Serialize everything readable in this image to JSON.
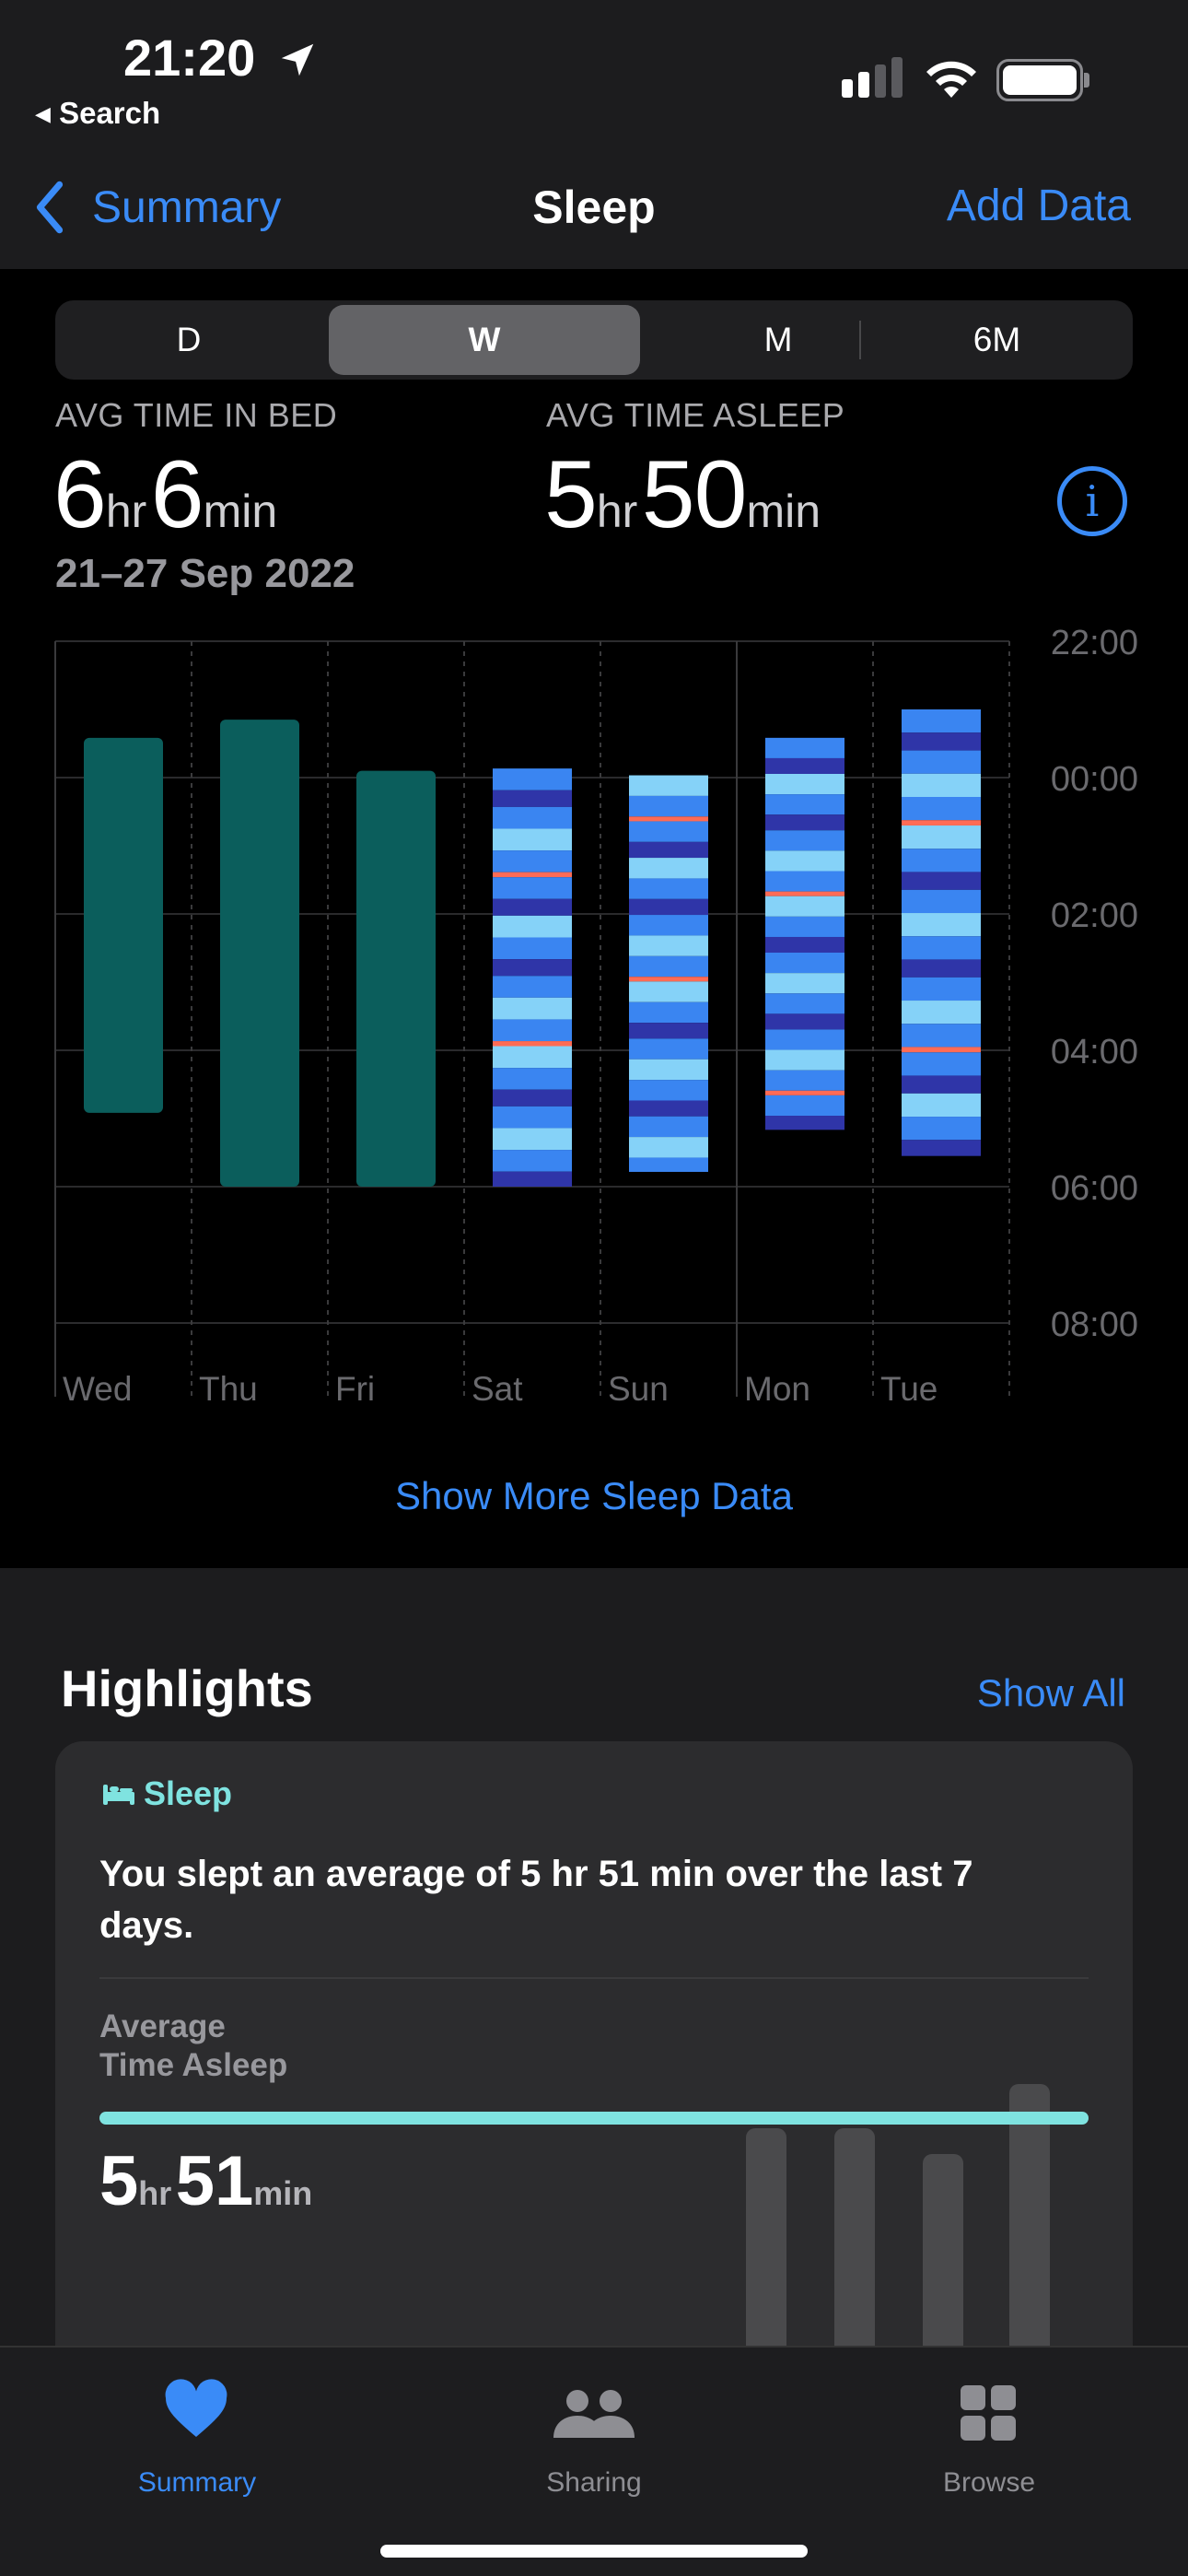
{
  "status_bar": {
    "time": "21:20",
    "back_app": "Search"
  },
  "nav": {
    "back_label": "Summary",
    "title": "Sleep",
    "action_label": "Add Data"
  },
  "segments": [
    "D",
    "W",
    "M",
    "6M"
  ],
  "selected_segment": "W",
  "stats": {
    "in_bed_label": "AVG TIME IN BED",
    "in_bed_hr": "6",
    "in_bed_min": "6",
    "asleep_label": "AVG TIME ASLEEP",
    "asleep_hr": "5",
    "asleep_min": "50",
    "hr_unit": "hr",
    "min_unit": "min",
    "date_range": "21–27 Sep 2022"
  },
  "chart_data": {
    "type": "bar",
    "y_ticks": [
      "22:00",
      "00:00",
      "02:00",
      "04:00",
      "06:00",
      "08:00"
    ],
    "ylim": [
      "22:00",
      "08:00"
    ],
    "categories": [
      "Wed",
      "Thu",
      "Fri",
      "Sat",
      "Sun",
      "Mon",
      "Tue"
    ],
    "series": [
      {
        "kind": "in_bed",
        "bars": [
          {
            "day": "Wed",
            "start": "23:25",
            "end": "04:55"
          },
          {
            "day": "Thu",
            "start": "23:09",
            "end": "06:00"
          },
          {
            "day": "Fri",
            "start": "23:54",
            "end": "06:00"
          }
        ]
      },
      {
        "kind": "sleep_stages",
        "bars": [
          {
            "day": "Sat",
            "start": "23:52",
            "end": "06:00"
          },
          {
            "day": "Sun",
            "start": "23:58",
            "end": "05:47"
          },
          {
            "day": "Mon",
            "start": "23:25",
            "end": "05:10"
          },
          {
            "day": "Tue",
            "start": "23:00",
            "end": "05:33"
          }
        ]
      }
    ],
    "colors": {
      "in_bed": "#0b5e5c",
      "core": "#3a85f1",
      "deep": "#2f35a8",
      "rem": "#85d2f8",
      "awake": "#ff6b55"
    }
  },
  "show_more_label": "Show More Sleep Data",
  "highlights": {
    "title": "Highlights",
    "show_all_label": "Show All",
    "card": {
      "category": "Sleep",
      "text": "You slept an average of 5 hr 51 min over the last 7 days.",
      "metric_label_line1": "Average",
      "metric_label_line2": "Time Asleep",
      "value_hr": "5",
      "value_min": "51",
      "hr_unit": "hr",
      "min_unit": "min"
    }
  },
  "tabs": [
    {
      "label": "Summary",
      "icon": "heart-icon",
      "active": true
    },
    {
      "label": "Sharing",
      "icon": "people-icon",
      "active": false
    },
    {
      "label": "Browse",
      "icon": "grid-icon",
      "active": false
    }
  ]
}
